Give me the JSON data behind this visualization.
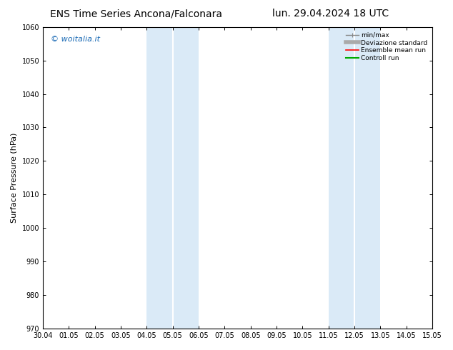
{
  "title_left": "ENS Time Series Ancona/Falconara",
  "title_right": "lun. 29.04.2024 18 UTC",
  "ylabel": "Surface Pressure (hPa)",
  "ylim": [
    970,
    1060
  ],
  "yticks": [
    970,
    980,
    990,
    1000,
    1010,
    1020,
    1030,
    1040,
    1050,
    1060
  ],
  "xtick_labels": [
    "30.04",
    "01.05",
    "02.05",
    "03.05",
    "04.05",
    "05.05",
    "06.05",
    "07.05",
    "08.05",
    "09.05",
    "10.05",
    "11.05",
    "12.05",
    "13.05",
    "14.05",
    "15.05"
  ],
  "shaded_bands": [
    {
      "xstart": 4.0,
      "xend": 4.5
    },
    {
      "xstart": 4.5,
      "xend": 6.0
    },
    {
      "xstart": 11.0,
      "xend": 11.5
    },
    {
      "xstart": 11.5,
      "xend": 13.0
    }
  ],
  "band_color": "#daeaf7",
  "background_color": "#ffffff",
  "watermark": "© woitalia.it",
  "watermark_color": "#1a6ab5",
  "legend_items": [
    {
      "label": "min/max",
      "color": "#888888",
      "lw": 1.0
    },
    {
      "label": "Deviazione standard",
      "color": "#aaaaaa",
      "lw": 4
    },
    {
      "label": "Ensemble mean run",
      "color": "#ff0000",
      "lw": 1.2
    },
    {
      "label": "Controll run",
      "color": "#00aa00",
      "lw": 1.5
    }
  ],
  "title_fontsize": 10,
  "axis_label_fontsize": 8,
  "tick_fontsize": 7,
  "watermark_fontsize": 8,
  "spine_color": "#000000"
}
